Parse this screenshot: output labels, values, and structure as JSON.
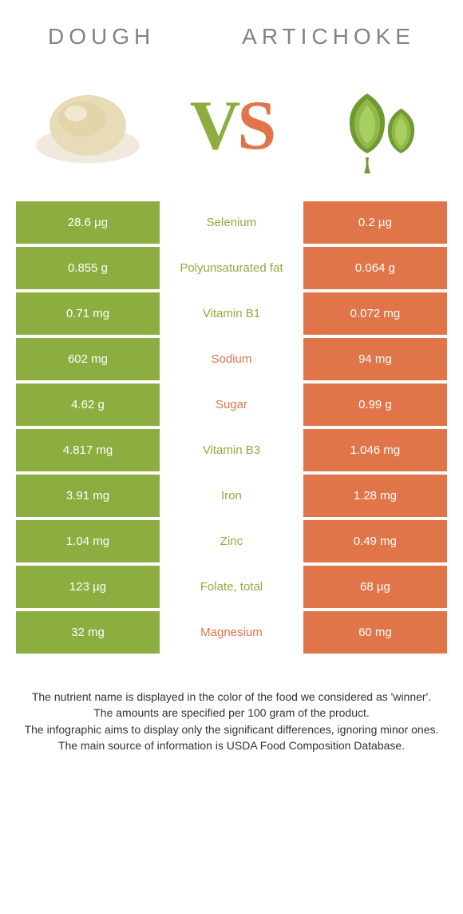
{
  "colors": {
    "green": "#8cad3f",
    "orange": "#e1754a",
    "headerText": "#838383",
    "footerText": "#333333",
    "background": "#ffffff"
  },
  "header": {
    "left": "Dough",
    "right": "Artichoke"
  },
  "vs": {
    "v": "V",
    "s": "S",
    "vColor": "#8cad3f",
    "sColor": "#e1754a"
  },
  "rows": [
    {
      "left": "28.6 µg",
      "label": "Selenium",
      "right": "0.2 µg",
      "winner": "left"
    },
    {
      "left": "0.855 g",
      "label": "Polyunsaturated fat",
      "right": "0.064 g",
      "winner": "left"
    },
    {
      "left": "0.71 mg",
      "label": "Vitamin B1",
      "right": "0.072 mg",
      "winner": "left"
    },
    {
      "left": "602 mg",
      "label": "Sodium",
      "right": "94 mg",
      "winner": "right"
    },
    {
      "left": "4.62 g",
      "label": "Sugar",
      "right": "0.99 g",
      "winner": "right"
    },
    {
      "left": "4.817 mg",
      "label": "Vitamin B3",
      "right": "1.046 mg",
      "winner": "left"
    },
    {
      "left": "3.91 mg",
      "label": "Iron",
      "right": "1.28 mg",
      "winner": "left"
    },
    {
      "left": "1.04 mg",
      "label": "Zinc",
      "right": "0.49 mg",
      "winner": "left"
    },
    {
      "left": "123 µg",
      "label": "Folate, total",
      "right": "68 µg",
      "winner": "left"
    },
    {
      "left": "32 mg",
      "label": "Magnesium",
      "right": "60 mg",
      "winner": "right"
    }
  ],
  "footer": {
    "l1": "The nutrient name is displayed in the color of the food we considered as 'winner'.",
    "l2": "The amounts are specified per 100 gram of the product.",
    "l3": "The infographic aims to display only the significant differences, ignoring minor ones.",
    "l4": "The main source of information is USDA Food Composition Database."
  }
}
